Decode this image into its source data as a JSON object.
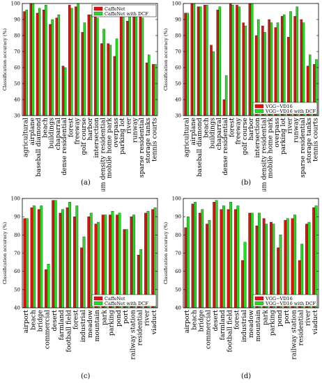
{
  "colors": {
    "red": "#e01010",
    "green": "#22dd22"
  },
  "chart_data": [
    {
      "type": "bar",
      "panel": "(a)",
      "ylabel": "Classification accuracy (%)",
      "ylim": [
        30,
        100
      ],
      "yticks": [
        30,
        40,
        50,
        60,
        70,
        80,
        90,
        100
      ],
      "grid": false,
      "legend": "top-right",
      "categories": [
        "agricultural",
        "airplane",
        "baseball diamond",
        "beach",
        "buildings",
        "chaparral",
        "dense residential",
        "forest",
        "freeway",
        "golf course",
        "harbor",
        "intersection",
        "medium density residential",
        "mobile home park",
        "overpass",
        "parking lot",
        "river",
        "runway",
        "sparse residential",
        "storage tanks",
        "tennis courts"
      ],
      "series": [
        {
          "name": "CaffeNet",
          "color": "#e01010",
          "values": [
            95,
            100,
            94,
            96,
            87,
            91,
            61,
            99,
            98,
            82,
            93,
            92,
            75,
            75,
            67,
            96,
            89,
            96,
            97,
            63,
            62
          ]
        },
        {
          "name": "CaffeNet with DCF",
          "color": "#22dd22",
          "values": [
            96,
            100,
            97,
            99,
            90,
            93,
            60,
            97,
            100,
            88,
            93,
            91,
            84,
            74,
            78,
            96,
            96,
            95,
            91,
            68,
            62
          ]
        }
      ]
    },
    {
      "type": "bar",
      "panel": "(b)",
      "ylabel": "Classification accuracy (%)",
      "ylim": [
        30,
        100
      ],
      "yticks": [
        30,
        40,
        50,
        60,
        70,
        80,
        90,
        100
      ],
      "grid": false,
      "legend": "bottom-right",
      "categories": [
        "agricultural",
        "airplane",
        "baseball diamond",
        "beach",
        "buildings",
        "chaparral",
        "dense residential",
        "forest",
        "freeway",
        "golf course",
        "harbor",
        "intersection",
        "medium density residential",
        "mobile home park",
        "overpass",
        "parking lot",
        "river",
        "runway",
        "sparse residential",
        "storage tanks",
        "tennis courts"
      ],
      "series": [
        {
          "name": "VGG−VD16",
          "color": "#e01010",
          "values": [
            94,
            100,
            98,
            99,
            74,
            96,
            40,
            100,
            99,
            88,
            100,
            80,
            86,
            90,
            85,
            92,
            79,
            92,
            90,
            61,
            62
          ]
        },
        {
          "name": "VGG−VD16 with DCF",
          "color": "#22dd22",
          "values": [
            94,
            100,
            98,
            99,
            70,
            98,
            55,
            99,
            98,
            86,
            100,
            90,
            82,
            88,
            88,
            93,
            95,
            98,
            88,
            68,
            65
          ]
        }
      ]
    },
    {
      "type": "bar",
      "panel": "(c)",
      "ylabel": "Classification accuracy (%)",
      "ylim": [
        40,
        100
      ],
      "yticks": [
        40,
        50,
        60,
        70,
        80,
        90,
        100
      ],
      "grid": false,
      "legend": "bottom-right",
      "categories": [
        "airport",
        "beach",
        "bridge",
        "commercial",
        "desert",
        "farmland",
        "football field",
        "forest",
        "industrial",
        "meadow",
        "mountain",
        "park",
        "parking",
        "pond",
        "port",
        "railway station",
        "residential",
        "river",
        "viaduct"
      ],
      "series": [
        {
          "name": "CaffeNet",
          "color": "#e01010",
          "values": [
            89,
            95,
            94,
            61,
            99,
            92,
            95,
            90,
            73,
            90,
            86,
            91,
            91,
            91,
            83,
            90,
            69,
            92,
            94
          ]
        },
        {
          "name": "CaffeNet with DCF",
          "color": "#22dd22",
          "values": [
            89,
            96,
            96,
            64,
            99,
            94,
            98,
            96,
            79,
            92,
            87,
            91,
            93,
            92,
            83,
            91,
            72,
            93,
            95
          ]
        }
      ]
    },
    {
      "type": "bar",
      "panel": "(d)",
      "ylabel": "Classification accuracy (%)",
      "ylim": [
        40,
        100
      ],
      "yticks": [
        40,
        50,
        60,
        70,
        80,
        90,
        100
      ],
      "grid": false,
      "legend": "bottom-right",
      "categories": [
        "airport",
        "beach",
        "bridge",
        "commercial",
        "desert",
        "farmland",
        "football field",
        "forest",
        "industrial",
        "meadow",
        "mountain",
        "park",
        "parking",
        "pond",
        "port",
        "railway station",
        "residential",
        "river",
        "viaduct"
      ],
      "series": [
        {
          "name": "VGG−VD16",
          "color": "#e01010",
          "values": [
            84,
            97,
            92,
            86,
            98,
            94,
            94,
            94,
            66,
            92,
            85,
            89,
            87,
            73,
            88,
            89,
            66,
            86,
            95
          ]
        },
        {
          "name": "VGG−VD16 with DCF",
          "color": "#22dd22",
          "values": [
            90,
            98,
            94,
            88,
            99,
            96,
            98,
            96,
            76,
            92,
            92,
            86,
            86,
            80,
            89,
            91,
            75,
            87,
            96
          ]
        }
      ]
    }
  ]
}
